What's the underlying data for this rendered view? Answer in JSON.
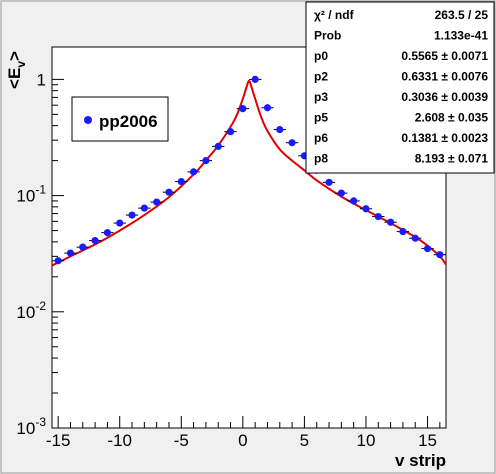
{
  "chart_data": {
    "type": "scatter",
    "title": "",
    "xlabel": "v strip",
    "ylabel": "<E_v>",
    "xlim": [
      -15.5,
      16.5
    ],
    "ylim": [
      0.001,
      1.9
    ],
    "yscale": "log",
    "grid": false,
    "legend_position": "top-left",
    "x_ticks": [
      "-15",
      "-10",
      "-5",
      "0",
      "5",
      "10",
      "15"
    ],
    "y_ticks": [
      {
        "base": "10",
        "exp": "-3",
        "value": 0.001
      },
      {
        "base": "10",
        "exp": "-2",
        "value": 0.01
      },
      {
        "base": "10",
        "exp": "-1",
        "value": 0.1
      },
      {
        "base": "1",
        "exp": "",
        "value": 1
      }
    ],
    "series": [
      {
        "name": "pp2006",
        "color": "#1a1aff",
        "x": [
          -15,
          -14,
          -13,
          -12,
          -11,
          -10,
          -9,
          -8,
          -7,
          -6,
          -5,
          -4,
          -3,
          -2,
          -1,
          0,
          1,
          2,
          3,
          4,
          5,
          6,
          7,
          8,
          9,
          10,
          11,
          12,
          13,
          14,
          15,
          16
        ],
        "y": [
          0.0275,
          0.032,
          0.036,
          0.041,
          0.048,
          0.058,
          0.068,
          0.078,
          0.088,
          0.107,
          0.132,
          0.16,
          0.2,
          0.265,
          0.355,
          0.56,
          1.0,
          0.57,
          0.37,
          0.285,
          0.22,
          0.165,
          0.13,
          0.105,
          0.09,
          0.077,
          0.066,
          0.059,
          0.049,
          0.043,
          0.035,
          0.031
        ]
      }
    ],
    "fit": {
      "color": "#e00000",
      "x": [
        -15.5,
        -14,
        -12,
        -10,
        -8,
        -6,
        -4,
        -3,
        -2,
        -1,
        -0.5,
        0,
        0.3,
        0.5,
        0.7,
        1,
        1.5,
        2,
        3,
        4,
        5,
        6,
        8,
        10,
        12,
        14,
        15,
        16,
        16.5
      ],
      "y": [
        0.025,
        0.03,
        0.038,
        0.05,
        0.068,
        0.097,
        0.152,
        0.2,
        0.27,
        0.39,
        0.49,
        0.68,
        0.86,
        0.97,
        0.86,
        0.68,
        0.47,
        0.36,
        0.25,
        0.2,
        0.165,
        0.135,
        0.098,
        0.075,
        0.058,
        0.044,
        0.037,
        0.03,
        0.0255
      ]
    },
    "stats": [
      {
        "key": "χ² / ndf",
        "value": "263.5 / 25"
      },
      {
        "key": "Prob",
        "value": "1.133e-41"
      },
      {
        "key": "p0",
        "value": "0.5565 ± 0.0071"
      },
      {
        "key": "p2",
        "value": "0.6331 ± 0.0076"
      },
      {
        "key": "p3",
        "value": "0.3036 ± 0.0039"
      },
      {
        "key": "p5",
        "value": "2.608 ± 0.035"
      },
      {
        "key": "p6",
        "value": "0.1381 ± 0.0023"
      },
      {
        "key": "p8",
        "value": "8.193 ± 0.071"
      }
    ]
  }
}
